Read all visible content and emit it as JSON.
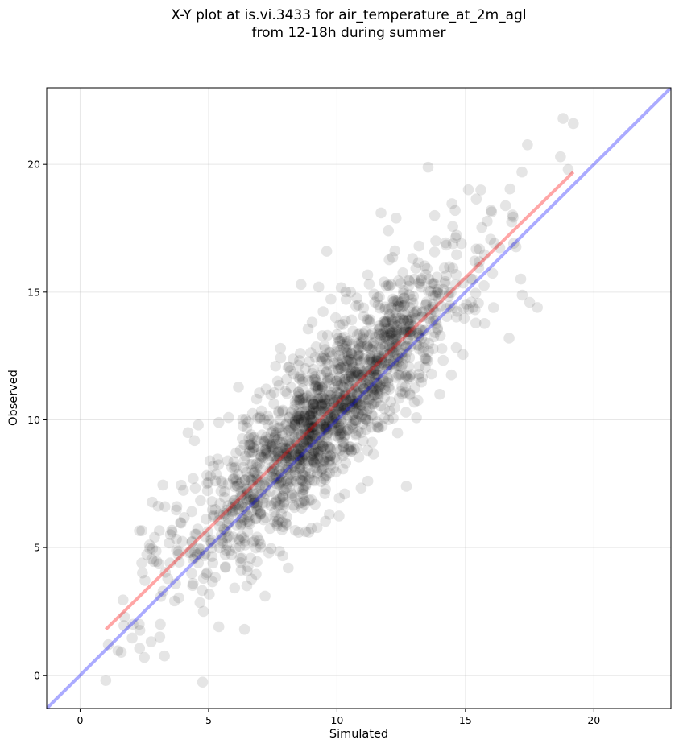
{
  "chart_data": {
    "type": "scatter",
    "title_line1": "X-Y plot at is.vi.3433 for air_temperature_at_2m_agl",
    "title_line2": "from 12-18h during summer",
    "xlabel": "Simulated",
    "ylabel": "Observed",
    "xlim": [
      -1.3,
      23.0
    ],
    "ylim": [
      -1.3,
      23.0
    ],
    "xticks": [
      0,
      5,
      10,
      15,
      20
    ],
    "yticks": [
      0,
      5,
      10,
      15,
      20
    ],
    "grid": true,
    "marker_color": "#000000",
    "marker_alpha": 0.1,
    "series": [
      {
        "label_note": "sample points",
        "points": [
          [
            1.0,
            -0.2
          ],
          [
            1.1,
            1.2
          ],
          [
            1.6,
            0.9
          ],
          [
            2.3,
            2.0
          ],
          [
            2.5,
            0.7
          ],
          [
            2.4,
            4.4
          ],
          [
            2.7,
            5.1
          ],
          [
            2.9,
            5.4
          ],
          [
            3.1,
            1.5
          ],
          [
            3.3,
            6.6
          ],
          [
            3.5,
            4.4
          ],
          [
            4.2,
            9.5
          ],
          [
            4.6,
            9.8
          ],
          [
            4.4,
            7.7
          ],
          [
            4.8,
            2.5
          ],
          [
            5.4,
            9.9
          ],
          [
            5.4,
            1.9
          ],
          [
            6.4,
            1.8
          ],
          [
            7.2,
            3.1
          ],
          [
            7.8,
            12.8
          ],
          [
            8.1,
            4.2
          ],
          [
            8.6,
            15.3
          ],
          [
            8.9,
            5.6
          ],
          [
            9.6,
            16.6
          ],
          [
            9.7,
            6.3
          ],
          [
            10.3,
            7.1
          ],
          [
            11.2,
            7.6
          ],
          [
            12.0,
            17.4
          ],
          [
            12.3,
            17.9
          ],
          [
            12.7,
            7.4
          ],
          [
            13.8,
            18.0
          ],
          [
            14.0,
            11.0
          ],
          [
            14.6,
            18.2
          ],
          [
            15.3,
            14.4
          ],
          [
            15.6,
            19.0
          ],
          [
            16.0,
            18.2
          ],
          [
            16.7,
            13.2
          ],
          [
            17.2,
            19.7
          ],
          [
            17.5,
            14.6
          ],
          [
            17.8,
            14.4
          ],
          [
            18.7,
            20.3
          ],
          [
            18.8,
            21.8
          ],
          [
            19.2,
            21.6
          ],
          [
            19.0,
            19.8
          ]
        ]
      }
    ],
    "regression_line": {
      "color": "#ff0000",
      "alpha": 0.35,
      "x": [
        1.0,
        19.2
      ],
      "y": [
        1.8,
        19.7
      ]
    },
    "identity_line": {
      "color": "#0000ff",
      "alpha": 0.33,
      "x": [
        -1.3,
        23.0
      ],
      "y": [
        -1.3,
        23.0
      ]
    }
  }
}
